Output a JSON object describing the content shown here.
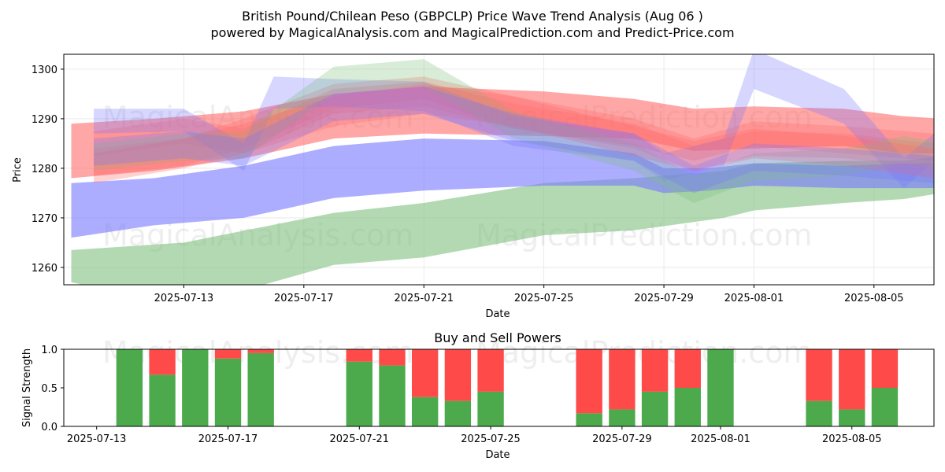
{
  "title_line1": "British Pound/Chilean Peso (GBPCLP) Price Wave Trend Analysis (Aug 06 )",
  "title_line2": "powered by MagicalAnalysis.com and MagicalPrediction.com and Predict-Price.com",
  "watermarks": [
    "MagicalAnalysis.com",
    "MagicalPrediction.com"
  ],
  "chart_data": [
    {
      "type": "area",
      "title": "",
      "xlabel": "Date",
      "ylabel": "Price",
      "ylim": [
        1256.5,
        1303.0
      ],
      "xlim": [
        "2025-07-09",
        "2025-08-07"
      ],
      "grid": true,
      "x_ticks": [
        "2025-07-13",
        "2025-07-17",
        "2025-07-21",
        "2025-07-25",
        "2025-07-29",
        "2025-08-01",
        "2025-08-05"
      ],
      "y_ticks": [
        1260,
        1270,
        1280,
        1290,
        1300
      ],
      "colors": {
        "red": "#ff6b6b",
        "blue": "#7777ff",
        "green": "#7fbf7f"
      },
      "series": [
        {
          "color": "green",
          "x": [
            "2025-07-09T06:00",
            "2025-07-13T00:00",
            "2025-07-18T00:00",
            "2025-07-21T00:00",
            "2025-07-25T00:00",
            "2025-07-28T00:00",
            "2025-07-31T00:00",
            "2025-08-01T00:00",
            "2025-08-04T00:00",
            "2025-08-06T00:00",
            "2025-08-07T06:00"
          ],
          "upper": [
            1263.5,
            1265.0,
            1271.0,
            1273.0,
            1277.0,
            1278.0,
            1279.5,
            1281.0,
            1281.5,
            1281.5,
            1282.5
          ],
          "lower": [
            1257.0,
            1252.0,
            1260.5,
            1262.0,
            1266.5,
            1267.5,
            1270.0,
            1271.5,
            1273.0,
            1273.8,
            1275.0
          ]
        },
        {
          "color": "blue",
          "x": [
            "2025-07-09T06:00",
            "2025-07-12T00:00",
            "2025-07-15T00:00",
            "2025-07-18T00:00",
            "2025-07-21T00:00",
            "2025-07-25T00:00",
            "2025-07-28T00:00",
            "2025-07-29T00:00",
            "2025-07-30T12:00",
            "2025-08-01T00:00",
            "2025-08-04T00:00",
            "2025-08-06T00:00",
            "2025-08-07T06:00"
          ],
          "upper": [
            1277.0,
            1278.0,
            1280.5,
            1284.5,
            1286.0,
            1285.5,
            1283.0,
            1280.0,
            1280.0,
            1281.0,
            1280.5,
            1281.0,
            1281.0
          ],
          "lower": [
            1266.0,
            1268.5,
            1270.0,
            1274.0,
            1275.5,
            1276.5,
            1276.5,
            1275.0,
            1275.5,
            1276.5,
            1276.0,
            1276.0,
            1276.0
          ]
        },
        {
          "color": "red",
          "x": [
            "2025-07-09T06:00",
            "2025-07-12T00:00",
            "2025-07-15T00:00",
            "2025-07-18T00:00",
            "2025-07-21T00:00",
            "2025-07-25T00:00",
            "2025-07-28T00:00",
            "2025-07-30T00:00",
            "2025-08-01T00:00",
            "2025-08-04T00:00",
            "2025-08-06T00:00",
            "2025-08-07T06:00"
          ],
          "upper": [
            1289.0,
            1290.0,
            1291.5,
            1295.0,
            1296.5,
            1295.5,
            1294.0,
            1292.0,
            1292.5,
            1292.0,
            1290.5,
            1290.0
          ],
          "lower": [
            1278.0,
            1279.5,
            1282.0,
            1286.0,
            1287.0,
            1286.5,
            1286.0,
            1283.5,
            1284.0,
            1284.5,
            1283.0,
            1283.0
          ]
        },
        {
          "color": "red",
          "x": [
            "2025-07-10T00:00",
            "2025-07-13T00:00",
            "2025-07-15T00:00",
            "2025-07-18T00:00",
            "2025-07-21T00:00",
            "2025-07-24T00:00",
            "2025-07-28T00:00",
            "2025-07-30T00:00",
            "2025-08-01T00:00",
            "2025-08-04T00:00",
            "2025-08-07T00:00"
          ],
          "upper": [
            1284.0,
            1286.0,
            1290.0,
            1297.0,
            1298.5,
            1294.5,
            1290.0,
            1286.0,
            1289.5,
            1288.5,
            1287.0
          ],
          "lower": [
            1278.5,
            1280.5,
            1284.0,
            1292.0,
            1294.0,
            1288.0,
            1284.5,
            1281.5,
            1284.5,
            1283.0,
            1281.5
          ]
        },
        {
          "color": "red",
          "x": [
            "2025-07-10T00:00",
            "2025-07-13T00:00",
            "2025-07-15T00:00",
            "2025-07-18T00:00",
            "2025-07-21T00:00",
            "2025-07-24T00:00",
            "2025-07-28T00:00",
            "2025-07-30T00:00",
            "2025-08-01T00:00",
            "2025-08-04T00:00",
            "2025-08-07T00:00"
          ],
          "upper": [
            1287.5,
            1290.0,
            1288.0,
            1296.0,
            1297.5,
            1293.0,
            1289.0,
            1284.5,
            1287.5,
            1287.0,
            1285.0
          ],
          "lower": [
            1282.5,
            1285.0,
            1283.0,
            1291.0,
            1292.5,
            1288.0,
            1284.0,
            1279.5,
            1282.5,
            1282.0,
            1280.0
          ]
        },
        {
          "color": "blue",
          "x": [
            "2025-07-10T00:00",
            "2025-07-13T00:00",
            "2025-07-15T00:00",
            "2025-07-16T00:00",
            "2025-07-18T00:00",
            "2025-07-21T00:00",
            "2025-07-24T00:00",
            "2025-07-28T00:00",
            "2025-07-29T00:00",
            "2025-07-31T00:00",
            "2025-08-01T00:00",
            "2025-08-04T00:00",
            "2025-08-06T00:00",
            "2025-08-07T00:00"
          ],
          "upper": [
            1292.0,
            1292.0,
            1285.0,
            1298.5,
            1298.0,
            1297.5,
            1290.5,
            1287.0,
            1283.0,
            1286.0,
            1304.0,
            1296.0,
            1282.0,
            1287.0
          ],
          "lower": [
            1287.0,
            1287.5,
            1279.5,
            1292.0,
            1292.5,
            1291.5,
            1284.5,
            1281.5,
            1277.5,
            1280.5,
            1296.0,
            1289.0,
            1276.0,
            1281.5
          ]
        },
        {
          "color": "green",
          "x": [
            "2025-07-10T00:00",
            "2025-07-13T00:00",
            "2025-07-15T00:00",
            "2025-07-18T00:00",
            "2025-07-21T00:00",
            "2025-07-24T00:00",
            "2025-07-28T00:00",
            "2025-07-30T00:00",
            "2025-08-01T00:00",
            "2025-08-04T00:00",
            "2025-08-06T00:00",
            "2025-08-07T00:00"
          ],
          "upper": [
            1285.0,
            1287.0,
            1287.5,
            1300.5,
            1302.0,
            1291.5,
            1285.0,
            1278.5,
            1283.0,
            1284.0,
            1286.5,
            1285.5
          ],
          "lower": [
            1279.5,
            1281.5,
            1282.0,
            1295.0,
            1296.5,
            1286.0,
            1279.5,
            1273.0,
            1277.5,
            1278.5,
            1281.0,
            1280.0
          ]
        },
        {
          "color": "red",
          "x": [
            "2025-07-10T00:00",
            "2025-07-13T00:00",
            "2025-07-15T00:00",
            "2025-07-18T00:00",
            "2025-07-21T00:00",
            "2025-07-24T00:00",
            "2025-07-28T00:00",
            "2025-07-30T00:00",
            "2025-08-01T00:00",
            "2025-08-04T00:00",
            "2025-08-07T00:00"
          ],
          "upper": [
            1283.0,
            1286.0,
            1289.0,
            1294.5,
            1297.0,
            1294.5,
            1288.5,
            1285.5,
            1288.0,
            1286.5,
            1284.0
          ],
          "lower": [
            1277.0,
            1280.0,
            1283.0,
            1288.5,
            1291.0,
            1288.5,
            1282.5,
            1279.5,
            1282.0,
            1280.5,
            1278.0
          ]
        },
        {
          "color": "blue",
          "x": [
            "2025-07-10T00:00",
            "2025-07-13T00:00",
            "2025-07-15T00:00",
            "2025-07-18T00:00",
            "2025-07-21T00:00",
            "2025-07-24T00:00",
            "2025-07-28T00:00",
            "2025-07-30T00:00",
            "2025-08-01T00:00",
            "2025-08-04T00:00",
            "2025-08-07T00:00"
          ],
          "upper": [
            1286.0,
            1287.5,
            1286.0,
            1295.0,
            1296.5,
            1291.0,
            1287.0,
            1280.5,
            1285.0,
            1284.0,
            1282.5
          ],
          "lower": [
            1280.5,
            1282.0,
            1280.5,
            1289.5,
            1291.0,
            1285.5,
            1281.5,
            1275.0,
            1279.5,
            1278.5,
            1277.0
          ]
        }
      ]
    },
    {
      "type": "bar",
      "title": "Buy and Sell Powers",
      "xlabel": "Date",
      "ylabel": "Signal Strength",
      "ylim": [
        0,
        1.0
      ],
      "xlim": [
        "2025-07-12T00:00",
        "2025-08-07T12:00"
      ],
      "grid": false,
      "x_ticks": [
        "2025-07-13",
        "2025-07-17",
        "2025-07-21",
        "2025-07-25",
        "2025-07-29",
        "2025-08-01",
        "2025-08-05"
      ],
      "y_ticks": [
        0.0,
        0.5,
        1.0
      ],
      "colors": {
        "buy": "#4caa4c",
        "sell": "#ff4a4a"
      },
      "categories": [
        "2025-07-14",
        "2025-07-15",
        "2025-07-16",
        "2025-07-17",
        "2025-07-18",
        "2025-07-21",
        "2025-07-22",
        "2025-07-23",
        "2025-07-24",
        "2025-07-25",
        "2025-07-28",
        "2025-07-29",
        "2025-07-30",
        "2025-07-31",
        "2025-08-01",
        "2025-08-04",
        "2025-08-05",
        "2025-08-06"
      ],
      "series": [
        {
          "key": "buy",
          "values": [
            1.0,
            0.67,
            1.0,
            0.88,
            0.95,
            0.84,
            0.79,
            0.38,
            0.33,
            0.45,
            0.17,
            0.22,
            0.45,
            0.5,
            1.0,
            0.33,
            0.22,
            0.5
          ]
        },
        {
          "key": "sell",
          "values": [
            0.0,
            0.33,
            0.0,
            0.12,
            0.05,
            0.16,
            0.21,
            0.62,
            0.67,
            0.55,
            0.83,
            0.78,
            0.55,
            0.5,
            0.0,
            0.67,
            0.78,
            0.5
          ]
        }
      ]
    }
  ]
}
